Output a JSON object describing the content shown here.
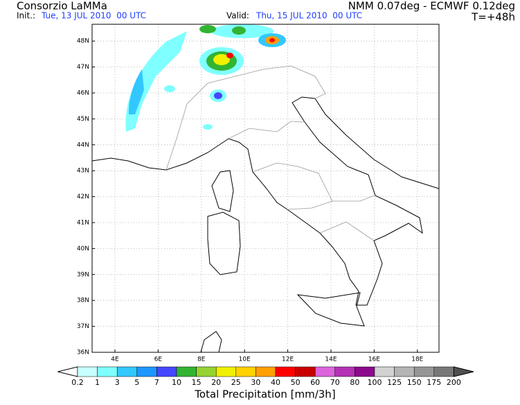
{
  "header": {
    "left_title": "Consorzio LaMMa",
    "right_title": "NMM 0.07deg - ECMWF 0.12deg",
    "init_label": "Init.:",
    "init_value": "Tue, 13 JUL 2010  00 UTC",
    "valid_label": "Valid:",
    "valid_value": "Thu, 15 JUL 2010  00 UTC",
    "forecast": "T=+48h"
  },
  "map": {
    "lat_ticks": [
      "36N",
      "37N",
      "38N",
      "39N",
      "40N",
      "41N",
      "42N",
      "43N",
      "44N",
      "45N",
      "46N",
      "47N",
      "48N"
    ],
    "lon_ticks": [
      "4E",
      "6E",
      "8E",
      "10E",
      "12E",
      "14E",
      "16E",
      "18E"
    ]
  },
  "colorbar": {
    "title": "Total Precipitation [mm/3h]",
    "levels": [
      0.2,
      1,
      3,
      5,
      7,
      10,
      15,
      20,
      25,
      30,
      40,
      50,
      60,
      70,
      80,
      100,
      125,
      150,
      175,
      200
    ],
    "colors": [
      "#c8ffff",
      "#7fffff",
      "#32c8ff",
      "#1e96ff",
      "#4646ff",
      "#32b432",
      "#96d232",
      "#f0f000",
      "#ffd200",
      "#ffa000",
      "#ff0000",
      "#c80000",
      "#dc64dc",
      "#b432b4",
      "#8c0a8c",
      "#d2d2d2",
      "#b4b4b4",
      "#969696",
      "#787878"
    ],
    "low_color": "#ffffff",
    "high_color": "#505050"
  }
}
